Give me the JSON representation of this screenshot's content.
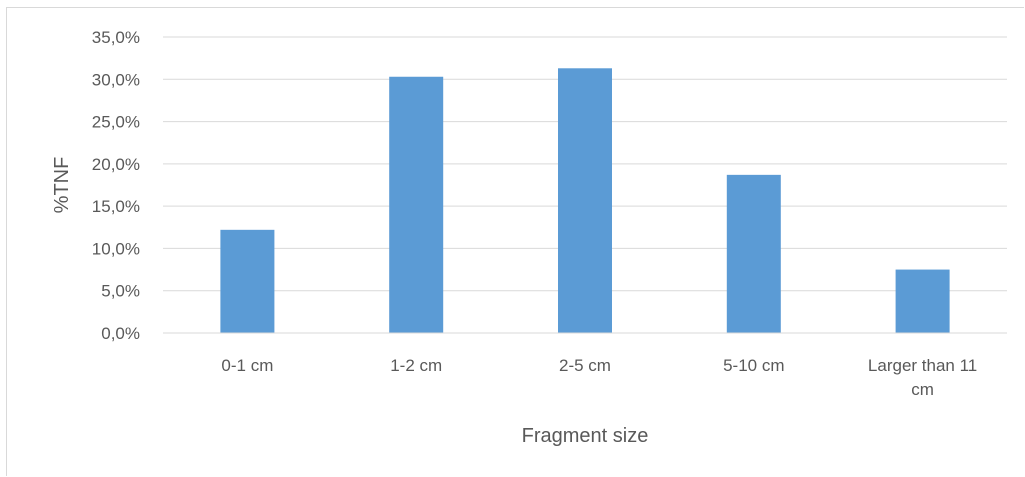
{
  "chart_data": {
    "type": "bar",
    "title": "",
    "xlabel": "Fragment size",
    "ylabel": "%TNF",
    "ylim": [
      0,
      35
    ],
    "ytick_step": 5,
    "yticks": [
      "0,0%",
      "5,0%",
      "10,0%",
      "15,0%",
      "20,0%",
      "25,0%",
      "30,0%",
      "35,0%"
    ],
    "grid": true,
    "legend": "none",
    "categories": [
      "0-1 cm",
      "1-2 cm",
      "2-5 cm",
      "5-10 cm",
      "Larger than 11 cm"
    ],
    "values": [
      12.2,
      30.3,
      31.3,
      18.7,
      7.5
    ],
    "bar_color": "#5b9bd5",
    "grid_color": "#d9d9d9"
  }
}
